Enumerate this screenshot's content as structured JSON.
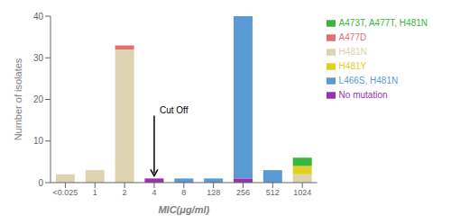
{
  "chart_data": {
    "type": "bar",
    "stacked": true,
    "categories": [
      "<0.025",
      "1",
      "2",
      "4",
      "8",
      "128",
      "256",
      "512",
      "1024"
    ],
    "series": [
      {
        "name": "H481N",
        "color": "#ddd3b0",
        "values": [
          2,
          3,
          32,
          0,
          0,
          0,
          0,
          0,
          2
        ]
      },
      {
        "name": "No mutation",
        "color": "#9b30b0",
        "values": [
          0,
          0,
          0,
          1,
          0,
          0,
          1,
          0,
          0
        ]
      },
      {
        "name": "A477D",
        "color": "#e07070",
        "values": [
          0,
          0,
          1,
          0,
          0,
          0,
          0,
          0,
          0
        ]
      },
      {
        "name": "L466S, H481N",
        "color": "#5b9bd5",
        "values": [
          0,
          0,
          0,
          0,
          1,
          1,
          39,
          3,
          0
        ]
      },
      {
        "name": "H481Y",
        "color": "#e0d020",
        "values": [
          0,
          0,
          0,
          0,
          0,
          0,
          0,
          0,
          2
        ]
      },
      {
        "name": "A473T, A477T, H481N",
        "color": "#3db53d",
        "values": [
          0,
          0,
          0,
          0,
          0,
          0,
          0,
          0,
          2
        ]
      }
    ],
    "xlabel": "MIC(μg/ml)",
    "ylabel": "Number of isolates",
    "ylim": [
      0,
      40
    ],
    "yticks": [
      0,
      10,
      20,
      30,
      40
    ],
    "grid": false,
    "legend": "right",
    "annotations": [
      {
        "text": "Cut Off",
        "x": "4",
        "y": 1
      }
    ]
  }
}
